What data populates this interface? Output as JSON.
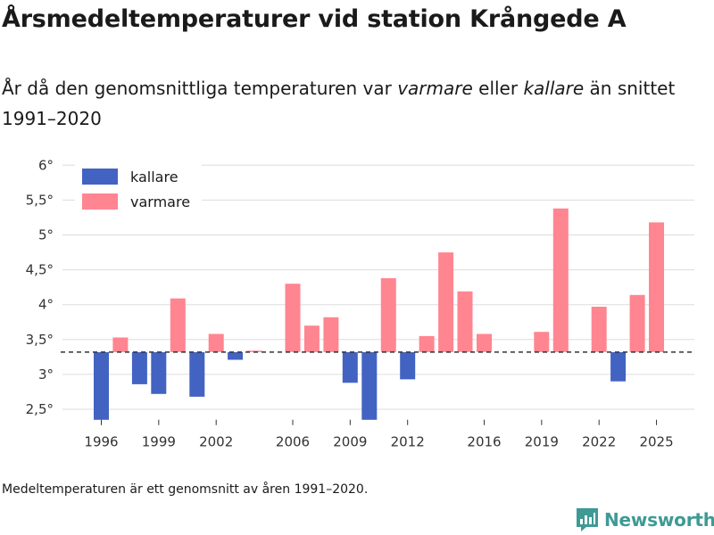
{
  "header": {
    "title": "Årsmedeltemperaturer vid station Krångede A",
    "subtitle_start": "År då den genomsnittliga temperaturen var ",
    "subtitle_warmer": "varmare",
    "subtitle_middle": " eller ",
    "subtitle_colder": "kallare",
    "subtitle_end": " än snittet 1991–2020"
  },
  "footer": {
    "note": "Medeltemperaturen är ett genomsnitt av åren 1991–2020.",
    "brand": "Newsworthy"
  },
  "colors": {
    "colder": "#4263c2",
    "warmer": "#ff8591",
    "grid": "#dddddd",
    "reference": "#333333",
    "brand": "#3e9a94"
  },
  "chart_data": {
    "type": "bar",
    "title": "Årsmedeltemperaturer vid station Krångede A",
    "baseline": 3.32,
    "baseline_style": "dashed",
    "ylim": [
      2.35,
      6.0
    ],
    "yticks": [
      2.5,
      3,
      3.5,
      4,
      4.5,
      5,
      5.5,
      6
    ],
    "ytick_labels": [
      "2,5°",
      "3°",
      "3,5°",
      "4°",
      "4,5°",
      "5°",
      "5,5°",
      "6°"
    ],
    "xticks": [
      1996,
      1999,
      2002,
      2006,
      2009,
      2012,
      2016,
      2019,
      2022,
      2025
    ],
    "legend": [
      {
        "key": "colder",
        "label": "kallare"
      },
      {
        "key": "warmer",
        "label": "varmare"
      }
    ],
    "legend_position": "top-left",
    "years": [
      1996,
      1997,
      1998,
      1999,
      2000,
      2001,
      2002,
      2003,
      2004,
      2005,
      2006,
      2007,
      2008,
      2009,
      2010,
      2011,
      2012,
      2013,
      2014,
      2015,
      2016,
      2017,
      2018,
      2019,
      2020,
      2021,
      2022,
      2023,
      2024,
      2025
    ],
    "values": [
      2.32,
      3.53,
      2.86,
      2.72,
      4.09,
      2.68,
      3.58,
      3.21,
      3.34,
      null,
      4.3,
      3.7,
      3.82,
      2.88,
      2.32,
      4.38,
      2.93,
      3.55,
      4.75,
      4.19,
      3.58,
      null,
      null,
      3.61,
      5.38,
      null,
      3.97,
      2.9,
      4.14,
      5.18
    ]
  }
}
